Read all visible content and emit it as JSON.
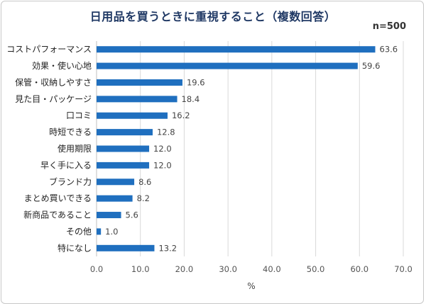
{
  "chart_data": {
    "type": "bar",
    "orientation": "horizontal",
    "title": "日用品を買うときに重視すること（複数回答）",
    "note": "n=500",
    "xlabel": "%",
    "xlim": [
      0,
      70
    ],
    "xticks": [
      "0.0",
      "10.0",
      "20.0",
      "30.0",
      "40.0",
      "50.0",
      "60.0",
      "70.0"
    ],
    "grid": true,
    "bar_color": "#1f6fbf",
    "categories": [
      "コストパフォーマンス",
      "効果・使い心地",
      "保管・収納しやすさ",
      "見た目・パッケージ",
      "口コミ",
      "時短できる",
      "使用期限",
      "早く手に入る",
      "ブランド力",
      "まとめ買いできる",
      "新商品であること",
      "その他",
      "特になし"
    ],
    "values": [
      63.6,
      59.6,
      19.6,
      18.4,
      16.2,
      12.8,
      12.0,
      12.0,
      8.6,
      8.2,
      5.6,
      1.0,
      13.2
    ],
    "value_labels": [
      "63.6",
      "59.6",
      "19.6",
      "18.4",
      "16.2",
      "12.8",
      "12.0",
      "12.0",
      "8.6",
      "8.2",
      "5.6",
      "1.0",
      "13.2"
    ]
  }
}
